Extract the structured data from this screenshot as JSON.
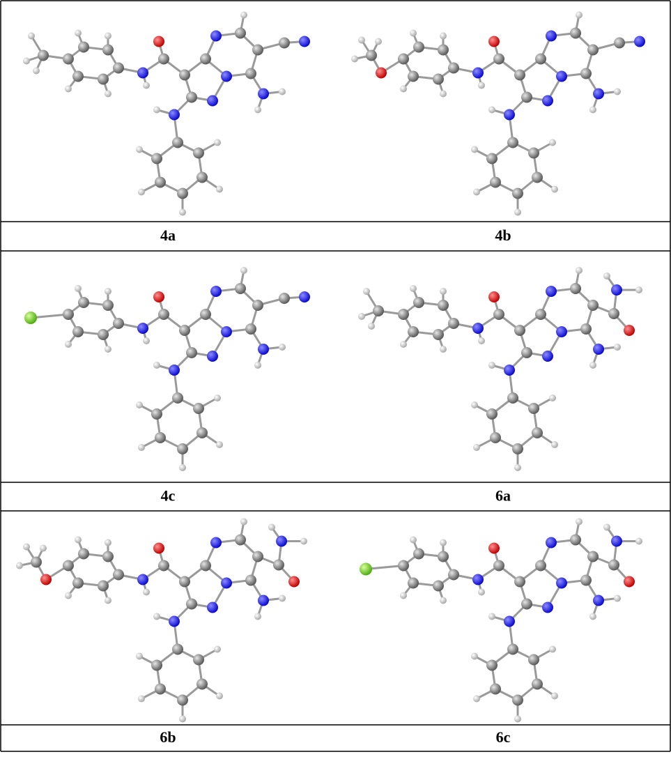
{
  "panels": [
    {
      "label": "4a"
    },
    {
      "label": "4b"
    },
    {
      "label": "4c"
    },
    {
      "label": "6a"
    },
    {
      "label": "6b"
    },
    {
      "label": "6c"
    }
  ]
}
